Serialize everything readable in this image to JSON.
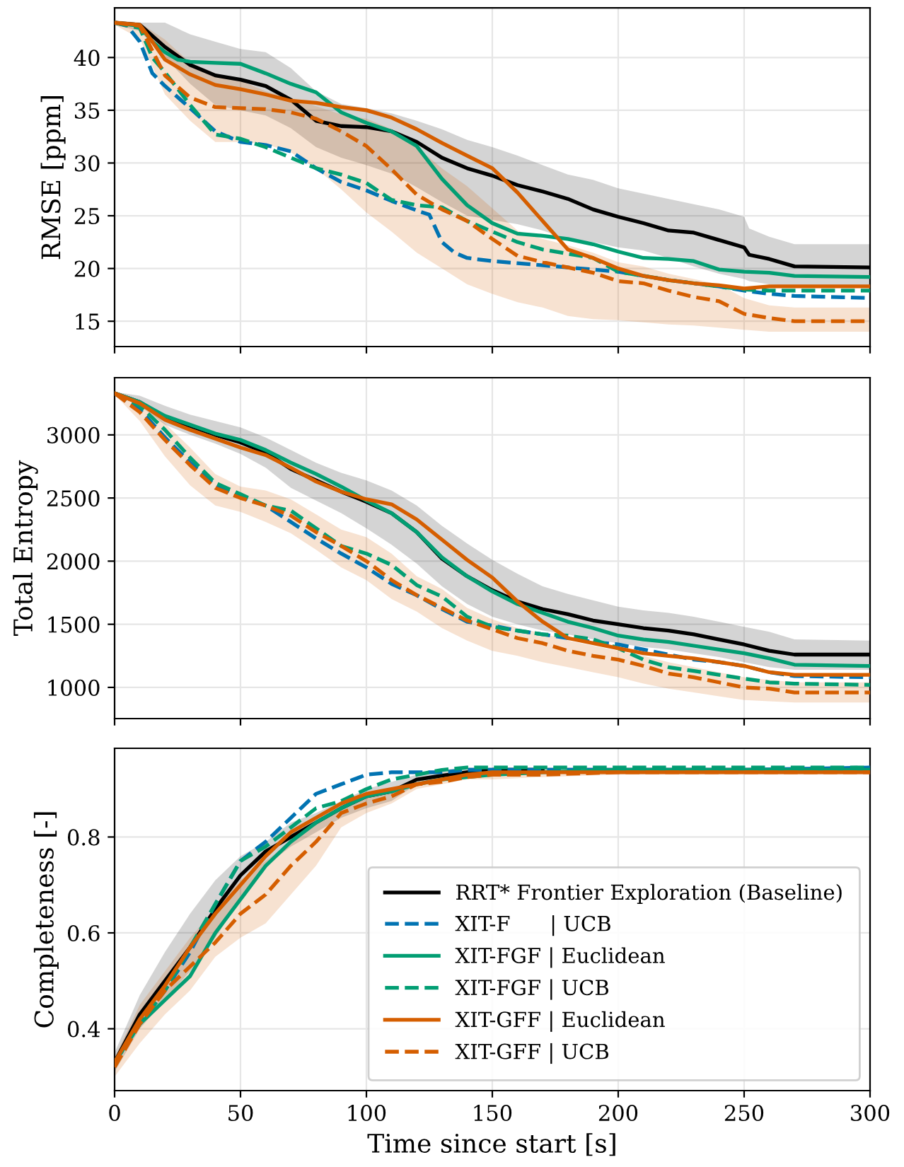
{
  "chart_data": [
    {
      "type": "line",
      "ylabel": "RMSE [ppm]",
      "xlim": [
        0,
        300
      ],
      "xticks": [
        0,
        50,
        100,
        150,
        200,
        250,
        300
      ],
      "ylim": [
        12.6,
        44.7
      ],
      "yticks": [
        15,
        20,
        25,
        30,
        35,
        40
      ],
      "grid": true,
      "legend": false,
      "tick_labels": "y",
      "series": [
        {
          "color": "#000000",
          "line_style": "solid",
          "x": [
            0,
            10,
            20,
            30,
            40,
            50,
            60,
            70,
            80,
            90,
            100,
            110,
            120,
            130,
            140,
            150,
            160,
            170,
            180,
            190,
            200,
            210,
            220,
            230,
            240,
            250,
            252,
            260,
            270,
            300
          ],
          "values": [
            43.3,
            43.1,
            41,
            39.3,
            38.3,
            37.9,
            37.3,
            36.0,
            34,
            33.5,
            33.4,
            33,
            32,
            30.5,
            29.5,
            28.8,
            27.9,
            27.3,
            26.6,
            25.6,
            24.9,
            24.3,
            23.6,
            23.4,
            22.7,
            22,
            21.3,
            20.9,
            20.2,
            20.1
          ],
          "upper": [
            43.5,
            43.3,
            43.3,
            42.2,
            41.5,
            40.8,
            40.5,
            39,
            36.8,
            35.6,
            35.2,
            34.7,
            34.0,
            33.2,
            32.2,
            31.5,
            30.7,
            29.8,
            28.9,
            28.4,
            27.6,
            27.1,
            26.6,
            26.1,
            25.6,
            24.9,
            23.8,
            23.0,
            22.3,
            22.3
          ],
          "lower": [
            43.1,
            42.5,
            40,
            37.5,
            35.5,
            35,
            34.5,
            33.3,
            31.5,
            30.5,
            29.8,
            29,
            27.7,
            26.3,
            25.0,
            24.6,
            24.2,
            23.6,
            22.8,
            22.5,
            22.0,
            21.7,
            21.0,
            20.2,
            19.5,
            19.0,
            18.8,
            18.5,
            18.3,
            18.3
          ]
        },
        {
          "color": "#0173b2",
          "line_style": "dashed",
          "x": [
            0,
            5,
            10,
            15,
            20,
            30,
            40,
            50,
            60,
            70,
            80,
            90,
            100,
            110,
            120,
            125,
            130,
            135,
            140,
            150,
            160,
            170,
            180,
            190,
            200,
            210,
            220,
            230,
            240,
            250,
            260,
            270,
            300
          ],
          "values": [
            43.3,
            43,
            41.5,
            38.5,
            37.3,
            35.2,
            33,
            32,
            31.7,
            31.1,
            29.5,
            28.2,
            27.4,
            26.4,
            25.5,
            25.1,
            22.5,
            21.5,
            21.0,
            20.7,
            20.5,
            20.3,
            20.1,
            19.9,
            19.7,
            19.3,
            18.9,
            18.6,
            18.3,
            17.9,
            17.6,
            17.4,
            17.2
          ]
        },
        {
          "color": "#029e73",
          "line_style": "solid",
          "x": [
            0,
            10,
            15,
            20,
            25,
            30,
            40,
            50,
            60,
            70,
            80,
            90,
            100,
            110,
            120,
            130,
            140,
            150,
            160,
            170,
            180,
            190,
            200,
            210,
            220,
            230,
            240,
            250,
            260,
            270,
            300
          ],
          "values": [
            43.3,
            43,
            41.5,
            40.5,
            39.8,
            39.6,
            39.5,
            39.4,
            38.5,
            37.5,
            36.7,
            34.8,
            33.8,
            33.0,
            31.6,
            28.5,
            26,
            24.3,
            23.3,
            23.1,
            22.8,
            22.3,
            21.6,
            21.0,
            20.9,
            20.7,
            19.9,
            19.7,
            19.6,
            19.3,
            19.2
          ]
        },
        {
          "color": "#029e73",
          "line_style": "dashed",
          "x": [
            0,
            10,
            15,
            20,
            30,
            40,
            50,
            60,
            70,
            80,
            90,
            100,
            110,
            120,
            130,
            140,
            150,
            160,
            170,
            180,
            190,
            200,
            210,
            220,
            230,
            240,
            250,
            260,
            300
          ],
          "values": [
            43.3,
            42.8,
            40,
            38.6,
            35.5,
            32.7,
            32.3,
            31.5,
            30.5,
            29.5,
            28.9,
            28.1,
            26.5,
            26,
            25.8,
            24.5,
            23.5,
            22.5,
            21.8,
            21.4,
            21.0,
            19.7,
            19.3,
            18.9,
            18.6,
            18.3,
            18.0,
            17.9,
            17.9
          ]
        },
        {
          "color": "#d55e00",
          "line_style": "solid",
          "x": [
            0,
            10,
            15,
            20,
            30,
            40,
            50,
            60,
            70,
            80,
            90,
            100,
            110,
            120,
            130,
            140,
            150,
            160,
            170,
            180,
            190,
            200,
            210,
            220,
            230,
            240,
            250,
            260,
            300
          ],
          "values": [
            43.3,
            43.1,
            41.5,
            39.8,
            38.4,
            37.4,
            37.0,
            36.5,
            35.9,
            35.7,
            35.3,
            35.0,
            34.3,
            33.2,
            31.9,
            30.7,
            29.5,
            27.2,
            24.5,
            21.8,
            21.0,
            20.0,
            19.3,
            18.9,
            18.6,
            18.4,
            18.1,
            18.3,
            18.3
          ]
        },
        {
          "color": "#d55e00",
          "line_style": "dashed",
          "x": [
            0,
            10,
            20,
            30,
            40,
            50,
            60,
            70,
            80,
            90,
            100,
            110,
            120,
            130,
            140,
            150,
            160,
            170,
            180,
            190,
            200,
            210,
            220,
            230,
            240,
            250,
            260,
            270,
            300
          ],
          "values": [
            43.3,
            43,
            38.3,
            36.2,
            35.3,
            35.2,
            35.1,
            34.8,
            34.2,
            33.0,
            31.6,
            29.4,
            27.0,
            25.6,
            24.5,
            22.8,
            21.2,
            20.6,
            20.1,
            19.6,
            18.8,
            18.6,
            17.9,
            17.3,
            16.9,
            15.7,
            15.3,
            15.0,
            15.0
          ],
          "upper": [
            43.5,
            43.3,
            41.7,
            39.5,
            38.5,
            37.8,
            36.8,
            36.2,
            35.4,
            34.6,
            34.2,
            33.2,
            31.5,
            29.5,
            27.8,
            25.7,
            23.6,
            22.8,
            22.2,
            21.5,
            20.6,
            20.2,
            19.5,
            19.0,
            18.5,
            17.2,
            16.5,
            16.3,
            16.3
          ],
          "lower": [
            43.1,
            41.8,
            36.5,
            34.0,
            32,
            32,
            31.8,
            31,
            29.5,
            27.5,
            25.3,
            23.5,
            21.5,
            20.0,
            18.5,
            17.6,
            16.8,
            16.3,
            15.5,
            15.2,
            15.1,
            14.9,
            14.7,
            14.6,
            14.4,
            14.2,
            14.0,
            14.0,
            14.0
          ]
        }
      ]
    },
    {
      "type": "line",
      "ylabel": "Total Entropy",
      "xlim": [
        0,
        300
      ],
      "xticks": [
        0,
        50,
        100,
        150,
        200,
        250,
        300
      ],
      "ylim": [
        753,
        3453
      ],
      "yticks": [
        1000,
        1500,
        2000,
        2500,
        3000
      ],
      "grid": true,
      "legend": false,
      "tick_labels": "y",
      "series": [
        {
          "color": "#000000",
          "line_style": "solid",
          "x": [
            0,
            10,
            20,
            30,
            40,
            50,
            60,
            70,
            80,
            90,
            100,
            110,
            120,
            130,
            140,
            150,
            160,
            170,
            180,
            190,
            200,
            210,
            220,
            230,
            240,
            250,
            260,
            270,
            300
          ],
          "values": [
            3330,
            3260,
            3140,
            3070,
            3000,
            2940,
            2860,
            2730,
            2640,
            2550,
            2470,
            2380,
            2230,
            2020,
            1880,
            1770,
            1680,
            1620,
            1580,
            1530,
            1500,
            1470,
            1450,
            1420,
            1380,
            1340,
            1290,
            1260,
            1260
          ],
          "upper": [
            3340,
            3310,
            3230,
            3160,
            3110,
            3060,
            2980,
            2880,
            2780,
            2700,
            2640,
            2560,
            2440,
            2280,
            2140,
            2010,
            1900,
            1800,
            1740,
            1690,
            1640,
            1610,
            1590,
            1560,
            1520,
            1480,
            1440,
            1380,
            1370
          ],
          "lower": [
            3320,
            3230,
            3080,
            3000,
            2930,
            2850,
            2740,
            2580,
            2480,
            2380,
            2260,
            2130,
            1980,
            1800,
            1660,
            1560,
            1500,
            1450,
            1420,
            1380,
            1350,
            1320,
            1300,
            1270,
            1240,
            1200,
            1160,
            1140,
            1140
          ]
        },
        {
          "color": "#0173b2",
          "line_style": "dashed",
          "x": [
            0,
            10,
            20,
            30,
            40,
            50,
            60,
            70,
            80,
            90,
            100,
            110,
            120,
            130,
            140,
            150,
            160,
            170,
            180,
            190,
            200,
            210,
            220,
            230,
            240,
            250,
            260,
            270,
            300
          ],
          "values": [
            3330,
            3200,
            2980,
            2780,
            2600,
            2510,
            2440,
            2310,
            2180,
            2060,
            1950,
            1820,
            1730,
            1620,
            1520,
            1490,
            1450,
            1420,
            1390,
            1360,
            1340,
            1300,
            1260,
            1220,
            1200,
            1170,
            1120,
            1090,
            1080
          ]
        },
        {
          "color": "#029e73",
          "line_style": "solid",
          "x": [
            0,
            10,
            20,
            30,
            40,
            50,
            60,
            70,
            80,
            90,
            100,
            110,
            120,
            130,
            140,
            150,
            160,
            170,
            180,
            190,
            200,
            210,
            220,
            230,
            240,
            250,
            260,
            270,
            300
          ],
          "values": [
            3330,
            3260,
            3150,
            3080,
            3010,
            2960,
            2880,
            2780,
            2690,
            2590,
            2480,
            2380,
            2230,
            2030,
            1880,
            1760,
            1660,
            1590,
            1520,
            1470,
            1410,
            1380,
            1360,
            1330,
            1300,
            1270,
            1230,
            1180,
            1170
          ]
        },
        {
          "color": "#029e73",
          "line_style": "dashed",
          "x": [
            0,
            10,
            20,
            30,
            40,
            50,
            60,
            70,
            80,
            90,
            100,
            110,
            120,
            130,
            140,
            150,
            160,
            170,
            180,
            190,
            200,
            210,
            220,
            230,
            240,
            250,
            260,
            270,
            300
          ],
          "values": [
            3330,
            3230,
            3040,
            2820,
            2620,
            2530,
            2440,
            2400,
            2260,
            2120,
            2060,
            1970,
            1810,
            1720,
            1560,
            1480,
            1450,
            1420,
            1410,
            1380,
            1310,
            1220,
            1160,
            1130,
            1100,
            1070,
            1040,
            1030,
            1020
          ]
        },
        {
          "color": "#d55e00",
          "line_style": "solid",
          "x": [
            0,
            10,
            20,
            30,
            40,
            50,
            60,
            70,
            80,
            90,
            100,
            110,
            120,
            130,
            140,
            150,
            160,
            170,
            180,
            190,
            200,
            210,
            220,
            230,
            240,
            250,
            260,
            270,
            300
          ],
          "values": [
            3330,
            3250,
            3120,
            3040,
            2970,
            2900,
            2840,
            2740,
            2630,
            2550,
            2490,
            2450,
            2330,
            2170,
            2010,
            1870,
            1680,
            1520,
            1390,
            1350,
            1310,
            1270,
            1250,
            1230,
            1200,
            1170,
            1120,
            1100,
            1100
          ]
        },
        {
          "color": "#d55e00",
          "line_style": "dashed",
          "x": [
            0,
            10,
            20,
            30,
            40,
            50,
            60,
            70,
            80,
            90,
            100,
            110,
            120,
            130,
            140,
            150,
            160,
            170,
            180,
            190,
            200,
            210,
            220,
            230,
            240,
            250,
            260,
            270,
            300
          ],
          "values": [
            3330,
            3180,
            2960,
            2760,
            2580,
            2500,
            2440,
            2360,
            2230,
            2120,
            2000,
            1850,
            1730,
            1630,
            1530,
            1460,
            1390,
            1350,
            1290,
            1250,
            1220,
            1170,
            1110,
            1080,
            1040,
            1000,
            990,
            960,
            960
          ],
          "upper": [
            3340,
            3260,
            3090,
            2900,
            2690,
            2590,
            2560,
            2490,
            2370,
            2250,
            2190,
            2060,
            1880,
            1780,
            1630,
            1540,
            1470,
            1430,
            1370,
            1330,
            1290,
            1250,
            1200,
            1160,
            1120,
            1080,
            1060,
            1040,
            1040
          ],
          "lower": [
            3320,
            3110,
            2830,
            2600,
            2440,
            2390,
            2310,
            2220,
            2090,
            1950,
            1850,
            1700,
            1600,
            1470,
            1370,
            1290,
            1250,
            1200,
            1160,
            1120,
            1080,
            1030,
            990,
            960,
            930,
            900,
            890,
            880,
            880
          ]
        }
      ]
    },
    {
      "type": "line",
      "ylabel": "Completeness [-]",
      "xlabel": "Time since start [s]",
      "xlim": [
        0,
        300
      ],
      "xticks": [
        0,
        50,
        100,
        150,
        200,
        250,
        300
      ],
      "ylim": [
        0.271,
        0.985
      ],
      "yticks": [
        0.4,
        0.6,
        0.8
      ],
      "grid": true,
      "legend": "bottom right",
      "series": [
        {
          "name": "RRT* Frontier Exploration (Baseline)",
          "color": "#000000",
          "line_style": "solid",
          "x": [
            0,
            10,
            20,
            30,
            40,
            50,
            60,
            70,
            80,
            90,
            100,
            110,
            120,
            130,
            140,
            150,
            170,
            200,
            250,
            300
          ],
          "values": [
            0.33,
            0.43,
            0.5,
            0.57,
            0.65,
            0.72,
            0.77,
            0.8,
            0.83,
            0.86,
            0.885,
            0.895,
            0.92,
            0.928,
            0.935,
            0.94,
            0.94,
            null,
            null,
            null
          ],
          "upper": [
            0.35,
            0.47,
            0.56,
            0.64,
            0.71,
            0.76,
            0.79,
            0.83,
            0.85,
            0.875,
            0.9,
            0.915,
            0.93,
            0.94,
            0.945,
            0.945,
            0.945,
            0.945,
            0.945,
            0.945
          ],
          "lower": [
            0.31,
            0.4,
            0.46,
            0.52,
            0.59,
            0.67,
            0.74,
            0.78,
            0.81,
            0.84,
            0.86,
            0.875,
            0.91,
            0.92,
            0.93,
            0.935,
            0.935,
            0.935,
            0.935,
            0.935
          ]
        },
        {
          "name": "XIT-F      | UCB",
          "color": "#0173b2",
          "line_style": "dashed",
          "x": [
            0,
            10,
            20,
            30,
            40,
            50,
            60,
            70,
            80,
            90,
            100,
            110,
            120,
            130,
            140,
            150,
            170,
            200,
            250,
            300
          ],
          "values": [
            0.33,
            0.41,
            0.48,
            0.56,
            0.66,
            0.75,
            0.79,
            0.84,
            0.89,
            0.91,
            0.93,
            0.935,
            0.935,
            0.935,
            0.94,
            0.94,
            0.94,
            0.94,
            0.94,
            0.945
          ]
        },
        {
          "name": "XIT-FGF | Euclidean",
          "color": "#029e73",
          "line_style": "solid",
          "x": [
            0,
            10,
            20,
            30,
            40,
            50,
            60,
            70,
            80,
            90,
            100,
            110,
            120,
            130,
            140,
            150,
            170,
            200,
            250,
            300
          ],
          "values": [
            0.33,
            0.41,
            0.46,
            0.51,
            0.6,
            0.67,
            0.74,
            0.79,
            0.83,
            0.86,
            0.885,
            0.895,
            0.91,
            0.92,
            0.925,
            0.93,
            0.935,
            0.94,
            0.94,
            0.94
          ]
        },
        {
          "name": "XIT-FGF | UCB",
          "color": "#029e73",
          "line_style": "dashed",
          "x": [
            0,
            10,
            20,
            30,
            40,
            50,
            60,
            70,
            80,
            90,
            100,
            110,
            120,
            130,
            140,
            150,
            170,
            200,
            250,
            300
          ],
          "values": [
            0.33,
            0.41,
            0.48,
            0.57,
            0.66,
            0.75,
            0.78,
            0.82,
            0.86,
            0.875,
            0.9,
            0.92,
            0.93,
            0.94,
            0.945,
            0.945,
            0.945,
            0.945,
            0.945,
            0.945
          ]
        },
        {
          "name": "XIT-GFF | Euclidean",
          "color": "#d55e00",
          "line_style": "solid",
          "x": [
            0,
            10,
            20,
            30,
            40,
            50,
            60,
            70,
            80,
            90,
            100,
            110,
            120,
            130,
            140,
            150,
            170,
            200,
            250,
            300
          ],
          "values": [
            0.33,
            0.42,
            0.49,
            0.57,
            0.64,
            0.7,
            0.76,
            0.81,
            0.84,
            0.87,
            0.89,
            0.9,
            0.91,
            0.92,
            0.93,
            0.935,
            0.935,
            0.935,
            0.935,
            0.935
          ]
        },
        {
          "name": "XIT-GFF | UCB",
          "color": "#d55e00",
          "line_style": "dashed",
          "x": [
            0,
            10,
            20,
            30,
            40,
            50,
            60,
            70,
            80,
            90,
            100,
            110,
            120,
            130,
            140,
            150,
            170,
            200,
            250,
            300
          ],
          "values": [
            0.32,
            0.41,
            0.48,
            0.53,
            0.58,
            0.64,
            0.68,
            0.74,
            0.79,
            0.85,
            0.87,
            0.885,
            0.91,
            0.915,
            0.925,
            0.93,
            0.93,
            0.935,
            0.935,
            0.935
          ],
          "upper": [
            0.34,
            0.45,
            0.52,
            0.59,
            0.65,
            0.71,
            0.75,
            0.79,
            0.83,
            0.87,
            0.89,
            0.9,
            0.92,
            0.93,
            0.935,
            0.94,
            0.94,
            0.94,
            0.94,
            0.94
          ],
          "lower": [
            0.3,
            0.37,
            0.43,
            0.48,
            0.55,
            0.59,
            0.62,
            0.68,
            0.74,
            0.82,
            0.85,
            0.87,
            0.9,
            0.91,
            0.92,
            0.92,
            0.925,
            0.93,
            0.93,
            0.93
          ]
        }
      ]
    }
  ]
}
